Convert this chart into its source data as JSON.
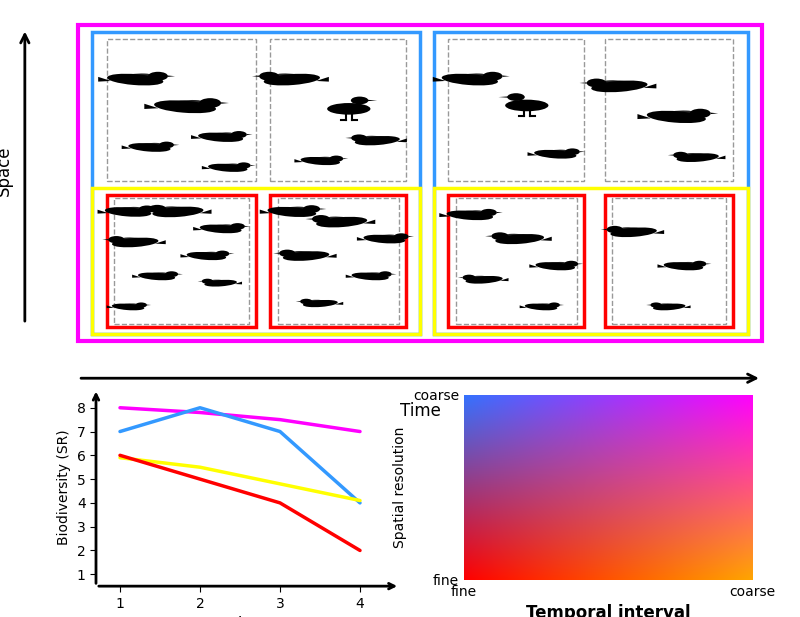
{
  "line_data": {
    "magenta": {
      "x": [
        1,
        2,
        3,
        4
      ],
      "y": [
        8.0,
        7.8,
        7.5,
        7.0
      ]
    },
    "blue": {
      "x": [
        1,
        2,
        3,
        4
      ],
      "y": [
        7.0,
        8.0,
        7.0,
        4.0
      ]
    },
    "yellow": {
      "x": [
        1,
        2,
        3,
        4
      ],
      "y": [
        5.9,
        5.5,
        4.8,
        4.1
      ]
    },
    "red": {
      "x": [
        1,
        2,
        3,
        4
      ],
      "y": [
        6.0,
        5.0,
        4.0,
        2.0
      ]
    }
  },
  "line_colors": {
    "magenta": "#FF00FF",
    "blue": "#3399FF",
    "yellow": "#FFFF00",
    "red": "#FF0000"
  },
  "line_widths": {
    "magenta": 2.5,
    "blue": 2.5,
    "yellow": 2.5,
    "red": 2.5
  },
  "ylabel": "Biodiversity (SR)",
  "xlabel_line": "Time",
  "yticks": [
    1,
    2,
    3,
    4,
    5,
    6,
    7,
    8
  ],
  "xticks": [
    1,
    2,
    3,
    4
  ],
  "ylim": [
    0.5,
    8.8
  ],
  "xlim": [
    0.7,
    4.5
  ],
  "colormap_xlabel": "Temporal interval",
  "colormap_ylabel": "Spatial resolution",
  "colormap_xmin": "fine",
  "colormap_xmax": "coarse",
  "colormap_ymin": "fine",
  "colormap_ymax": "coarse",
  "space_label": "Space",
  "time_label": "Time",
  "bg_color": "#FFFFFF",
  "magenta_color": "#FF00FF",
  "blue_color": "#3399FF",
  "yellow_color": "#FFFF00",
  "red_color": "#FF0000"
}
